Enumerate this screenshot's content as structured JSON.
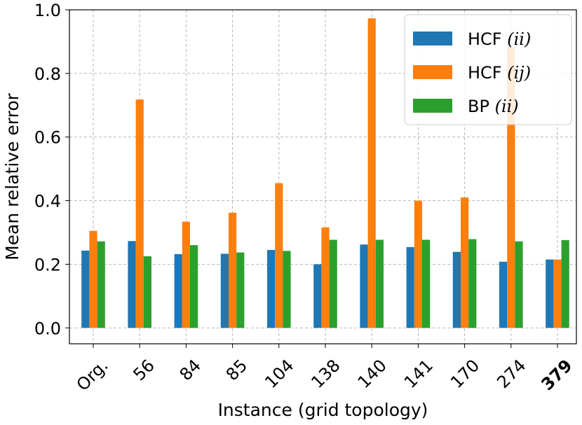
{
  "chart_data": {
    "type": "bar",
    "xlabel": "Instance (grid topology)",
    "ylabel": "Mean relative error",
    "ylim": [
      -0.05,
      1.0
    ],
    "yticks": [
      "0.0",
      "0.2",
      "0.4",
      "0.6",
      "0.8",
      "1.0"
    ],
    "grid": true,
    "legend_position": "top-right",
    "categories": [
      "Org.",
      "56",
      "84",
      "85",
      "104",
      "138",
      "140",
      "141",
      "170",
      "274",
      "379"
    ],
    "highlighted_category": "379",
    "highlight_color": "#ff0000",
    "series": [
      {
        "name": "HCF",
        "name_math": "(ii)",
        "color": "#1f77b4",
        "values": [
          0.243,
          0.273,
          0.232,
          0.233,
          0.245,
          0.2,
          0.262,
          0.254,
          0.239,
          0.208,
          0.215
        ]
      },
      {
        "name": "HCF",
        "name_math": "(ij)",
        "color": "#ff7f0e",
        "values": [
          0.305,
          0.718,
          0.334,
          0.362,
          0.455,
          0.316,
          0.973,
          0.4,
          0.41,
          0.883,
          0.215
        ]
      },
      {
        "name": "BP",
        "name_math": "(ii)",
        "color": "#2ca02c",
        "values": [
          0.272,
          0.225,
          0.26,
          0.237,
          0.242,
          0.277,
          0.277,
          0.277,
          0.279,
          0.272,
          0.276
        ]
      }
    ]
  }
}
